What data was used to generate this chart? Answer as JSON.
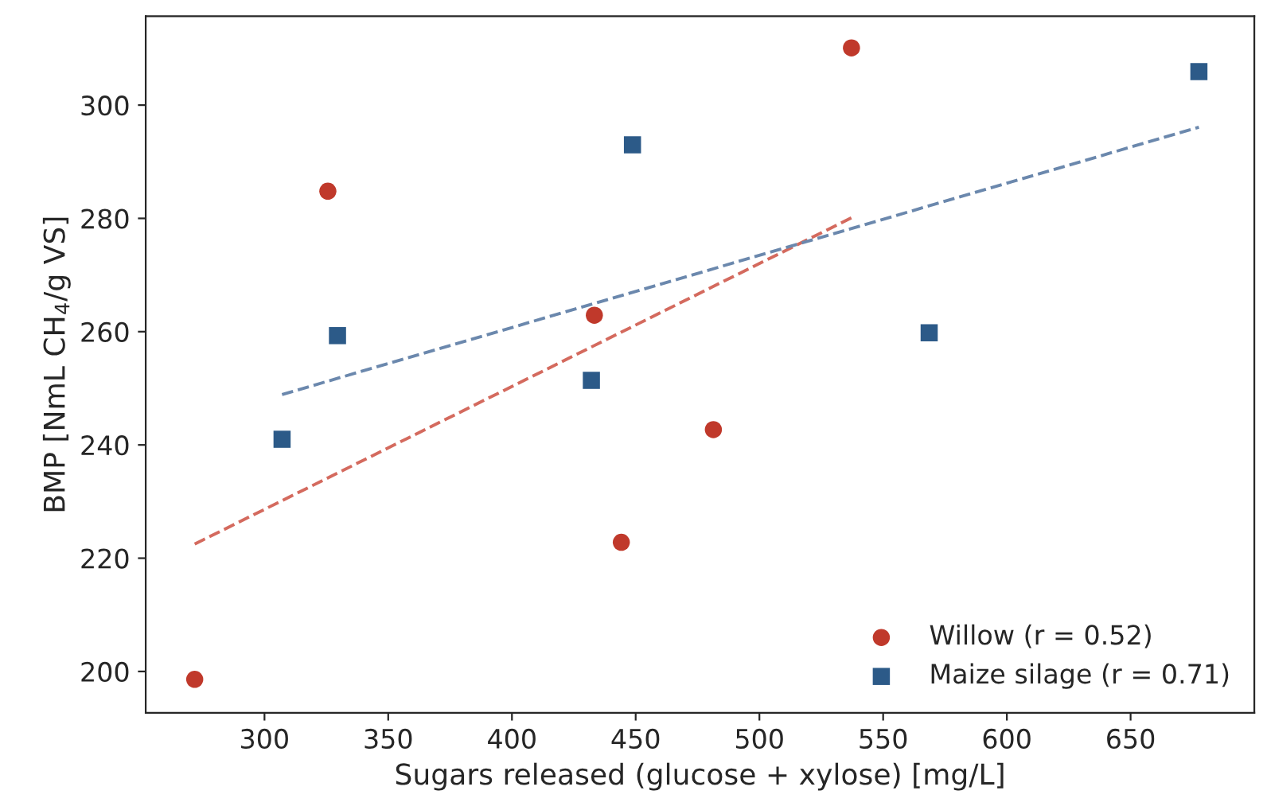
{
  "chart_data": {
    "type": "scatter",
    "xlabel": "Sugars released (glucose + xylose) [mg/L]",
    "ylabel": "BMP [NmL CH$_{4}$/g VS]",
    "xlim": [
      252,
      700
    ],
    "ylim": [
      192.7,
      315.7
    ],
    "xticks": [
      300,
      350,
      400,
      450,
      500,
      550,
      600,
      650
    ],
    "yticks": [
      200,
      220,
      240,
      260,
      280,
      300
    ],
    "grid": false,
    "legend": "bottom right",
    "series": [
      {
        "name": "Willow (r = 0.52)",
        "color": "#c0392b",
        "marker": "circle",
        "x": [
          271.8,
          325.6,
          433.3,
          444.2,
          481.4,
          537.2
        ],
        "values": [
          198.6,
          284.8,
          262.9,
          222.8,
          242.7,
          310.1
        ]
      },
      {
        "name": "Maize silage (r = 0.71)",
        "color": "#2c5a88",
        "marker": "square",
        "x": [
          307.1,
          329.5,
          432.1,
          448.7,
          568.6,
          677.6
        ],
        "values": [
          241.0,
          259.3,
          251.4,
          293.0,
          259.8,
          305.9
        ]
      },
      {
        "type": "line",
        "color": "#d46a5e",
        "line_style": "dashed",
        "marker": "none",
        "x": [
          271.8,
          537.2
        ],
        "values": [
          222.5,
          280.1
        ]
      },
      {
        "type": "line",
        "color": "#6b88ad",
        "line_style": "dashed",
        "marker": "none",
        "x": [
          307.1,
          677.6
        ],
        "values": [
          248.9,
          296.1
        ]
      }
    ]
  }
}
